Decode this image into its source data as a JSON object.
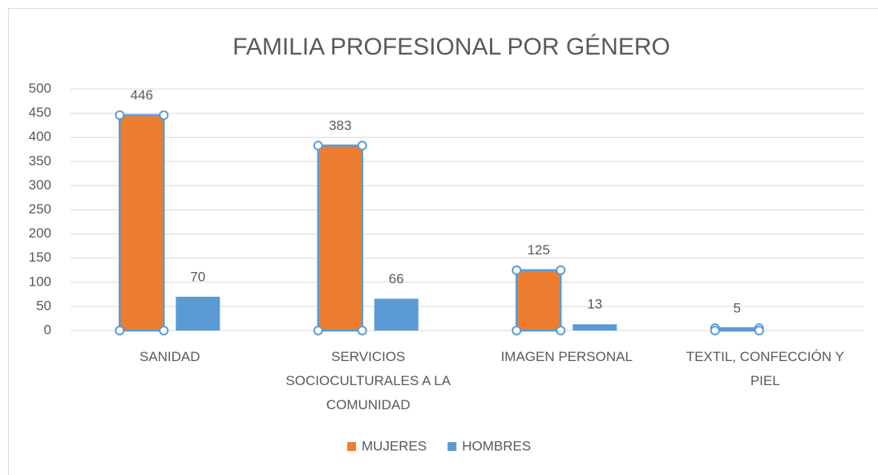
{
  "chart_data": {
    "type": "bar",
    "title": "FAMILIA PROFESIONAL POR GÉNERO",
    "categories": [
      "SANIDAD",
      "SERVICIOS SOCIOCULTURALES A LA COMUNIDAD",
      "IMAGEN PERSONAL",
      "TEXTIL, CONFECCIÓN Y PIEL"
    ],
    "series": [
      {
        "name": "MUJERES",
        "color": "#ed7d31",
        "values": [
          446,
          383,
          125,
          5
        ]
      },
      {
        "name": "HOMBRES",
        "color": "#5b9bd5",
        "values": [
          70,
          66,
          13,
          null
        ]
      }
    ],
    "ylim": [
      0,
      500
    ],
    "yticks": [
      0,
      50,
      100,
      150,
      200,
      250,
      300,
      350,
      400,
      450,
      500
    ],
    "grid": true,
    "legend": "bottom"
  }
}
